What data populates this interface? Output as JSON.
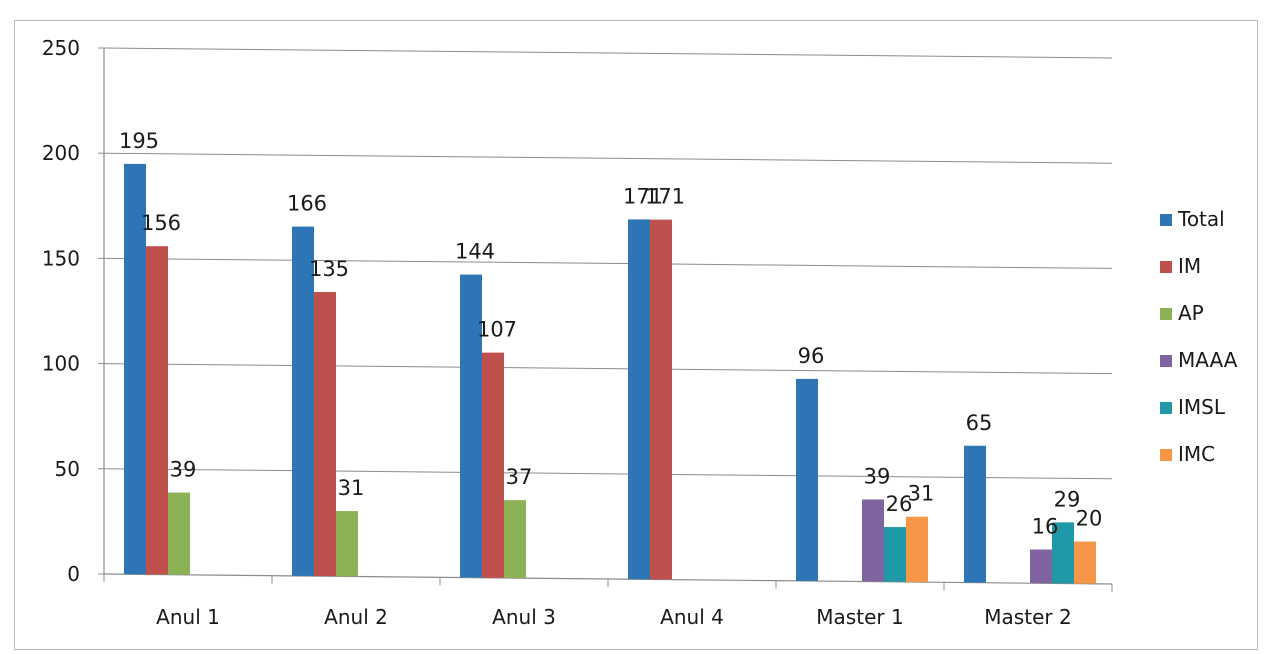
{
  "chart_data": {
    "type": "bar",
    "categories": [
      "Anul 1",
      "Anul 2",
      "Anul 3",
      "Anul 4",
      "Master 1",
      "Master 2"
    ],
    "series": [
      {
        "name": "Total",
        "color": "#2e75b6",
        "values": [
          195,
          166,
          144,
          171,
          96,
          65
        ]
      },
      {
        "name": "IM",
        "color": "#c0504d",
        "values": [
          156,
          135,
          107,
          171,
          null,
          null
        ]
      },
      {
        "name": "AP",
        "color": "#8db255",
        "values": [
          39,
          31,
          37,
          null,
          null,
          null
        ]
      },
      {
        "name": "MAAA",
        "color": "#8064a2",
        "values": [
          null,
          null,
          null,
          null,
          39,
          16
        ]
      },
      {
        "name": "IMSL",
        "color": "#1f98a8",
        "values": [
          null,
          null,
          null,
          null,
          26,
          29
        ]
      },
      {
        "name": "IMC",
        "color": "#f79646",
        "values": [
          null,
          null,
          null,
          null,
          31,
          20
        ]
      }
    ],
    "ylim": [
      0,
      250
    ],
    "yticks": [
      0,
      50,
      100,
      150,
      200,
      250
    ],
    "grid": true,
    "legend_position": "right"
  }
}
